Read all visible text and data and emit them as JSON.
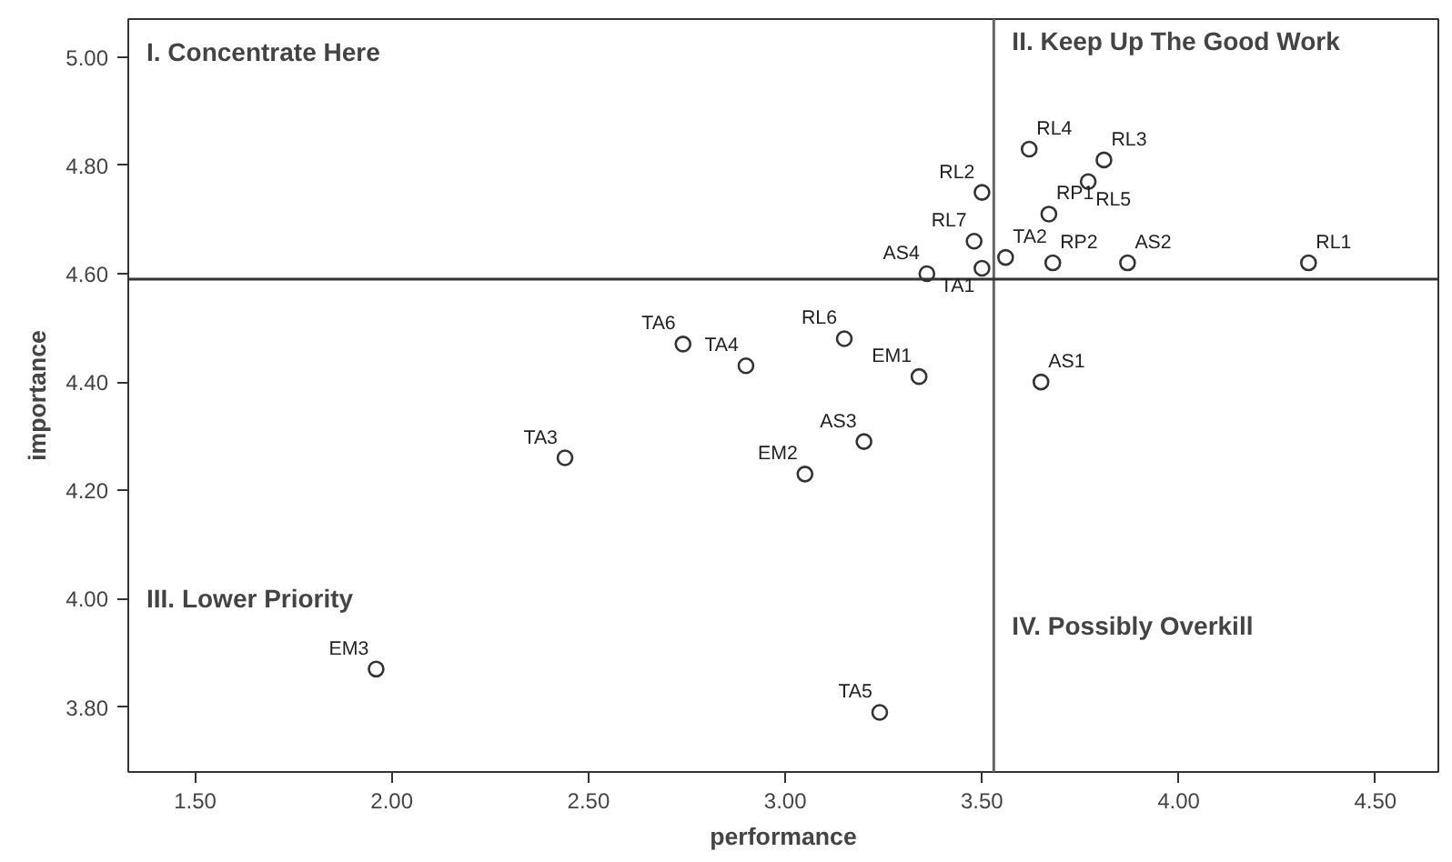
{
  "chart_data": {
    "type": "scatter",
    "xlabel": "performance",
    "ylabel": "importance",
    "xlim": [
      1.33,
      4.66
    ],
    "ylim": [
      3.68,
      5.07
    ],
    "xticks": [
      {
        "value": 1.5,
        "label": "1.50"
      },
      {
        "value": 2.0,
        "label": "2.00"
      },
      {
        "value": 2.5,
        "label": "2.50"
      },
      {
        "value": 3.0,
        "label": "3.00"
      },
      {
        "value": 3.5,
        "label": "3.50"
      },
      {
        "value": 4.0,
        "label": "4.00"
      },
      {
        "value": 4.5,
        "label": "4.50"
      }
    ],
    "yticks": [
      {
        "value": 3.8,
        "label": "3.80"
      },
      {
        "value": 4.0,
        "label": "4.00"
      },
      {
        "value": 4.2,
        "label": "4.20"
      },
      {
        "value": 4.4,
        "label": "4.40"
      },
      {
        "value": 4.6,
        "label": "4.60"
      },
      {
        "value": 4.8,
        "label": "4.80"
      },
      {
        "value": 5.0,
        "label": "5.00"
      }
    ],
    "grid": false,
    "marker": "circle",
    "series": [
      {
        "color": "#333333",
        "x": [
          3.5,
          3.62,
          3.81,
          3.77,
          3.67,
          3.48,
          3.5,
          3.36,
          3.56,
          3.68,
          3.87,
          4.33,
          2.74,
          2.9,
          3.15,
          3.34,
          3.65,
          3.2,
          2.44,
          3.05,
          1.96,
          3.24
        ],
        "values": [
          4.75,
          4.83,
          4.81,
          4.77,
          4.71,
          4.66,
          4.61,
          4.6,
          4.63,
          4.62,
          4.62,
          4.62,
          4.47,
          4.43,
          4.48,
          4.41,
          4.4,
          4.29,
          4.26,
          4.23,
          3.87,
          3.79
        ],
        "value_labels": [
          "RL2",
          "RL4",
          "RL3",
          "RL5",
          "RP1",
          "RL7",
          "TA1",
          "AS4",
          "TA2",
          "RP2",
          "AS2",
          "RL1",
          "TA6",
          "TA4",
          "RL6",
          "EM1",
          "AS1",
          "AS3",
          "TA3",
          "EM2",
          "EM3",
          "TA5"
        ]
      }
    ],
    "ref_lines": [
      {
        "axis": "x",
        "value": 3.53,
        "color": "#666666"
      },
      {
        "axis": "y",
        "value": 4.59,
        "color": "#333333"
      }
    ],
    "annotations": [
      "I. Concentrate Here",
      "II. Keep Up The Good Work",
      "III. Lower Priority",
      "IV. Possibly Overkill"
    ]
  }
}
